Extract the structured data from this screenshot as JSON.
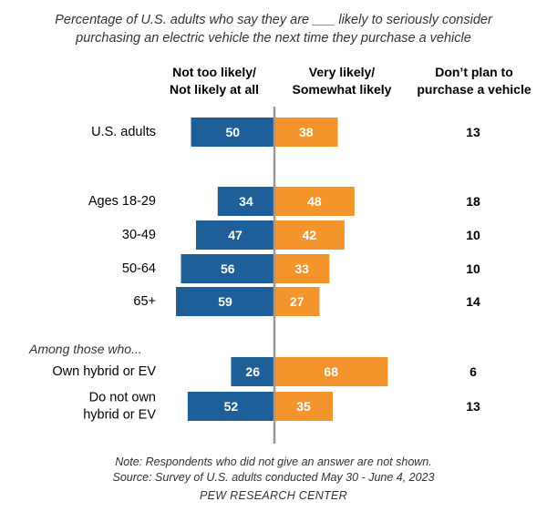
{
  "subtitle_line1": "Percentage of U.S. adults who say they are ___ likely to seriously consider",
  "subtitle_line2": "purchasing an electric vehicle the next time they purchase a vehicle",
  "columns": {
    "left_line1": "Not too likely/",
    "left_line2": "Not likely at all",
    "mid_line1": "Very likely/",
    "mid_line2": "Somewhat likely",
    "right_line1": "Don’t plan to",
    "right_line2": "purchase a vehicle"
  },
  "footer": {
    "note": "Note: Respondents who did not give an answer are not shown.",
    "source": "Source: Survey of U.S. adults conducted May 30 - June 4, 2023",
    "org": "PEW RESEARCH CENTER"
  },
  "colors": {
    "not_likely": "#1f5f99",
    "likely": "#f4942c",
    "axis": "#999999"
  },
  "chart_data": {
    "type": "bar",
    "orientation": "diverging-horizontal",
    "section_label": "Among those who...",
    "rows": [
      {
        "label": [
          "U.S. adults"
        ],
        "not_likely": 50,
        "likely": 38,
        "no_plan": 13
      },
      {
        "label": [
          "Ages 18-29"
        ],
        "not_likely": 34,
        "likely": 48,
        "no_plan": 18
      },
      {
        "label": [
          "30-49"
        ],
        "not_likely": 47,
        "likely": 42,
        "no_plan": 10
      },
      {
        "label": [
          "50-64"
        ],
        "not_likely": 56,
        "likely": 33,
        "no_plan": 10
      },
      {
        "label": [
          "65+"
        ],
        "not_likely": 59,
        "likely": 27,
        "no_plan": 14
      },
      {
        "label": [
          "Own hybrid or EV"
        ],
        "not_likely": 26,
        "likely": 68,
        "no_plan": 6
      },
      {
        "label": [
          "Do not own",
          "hybrid or EV"
        ],
        "not_likely": 52,
        "likely": 35,
        "no_plan": 13
      }
    ]
  }
}
